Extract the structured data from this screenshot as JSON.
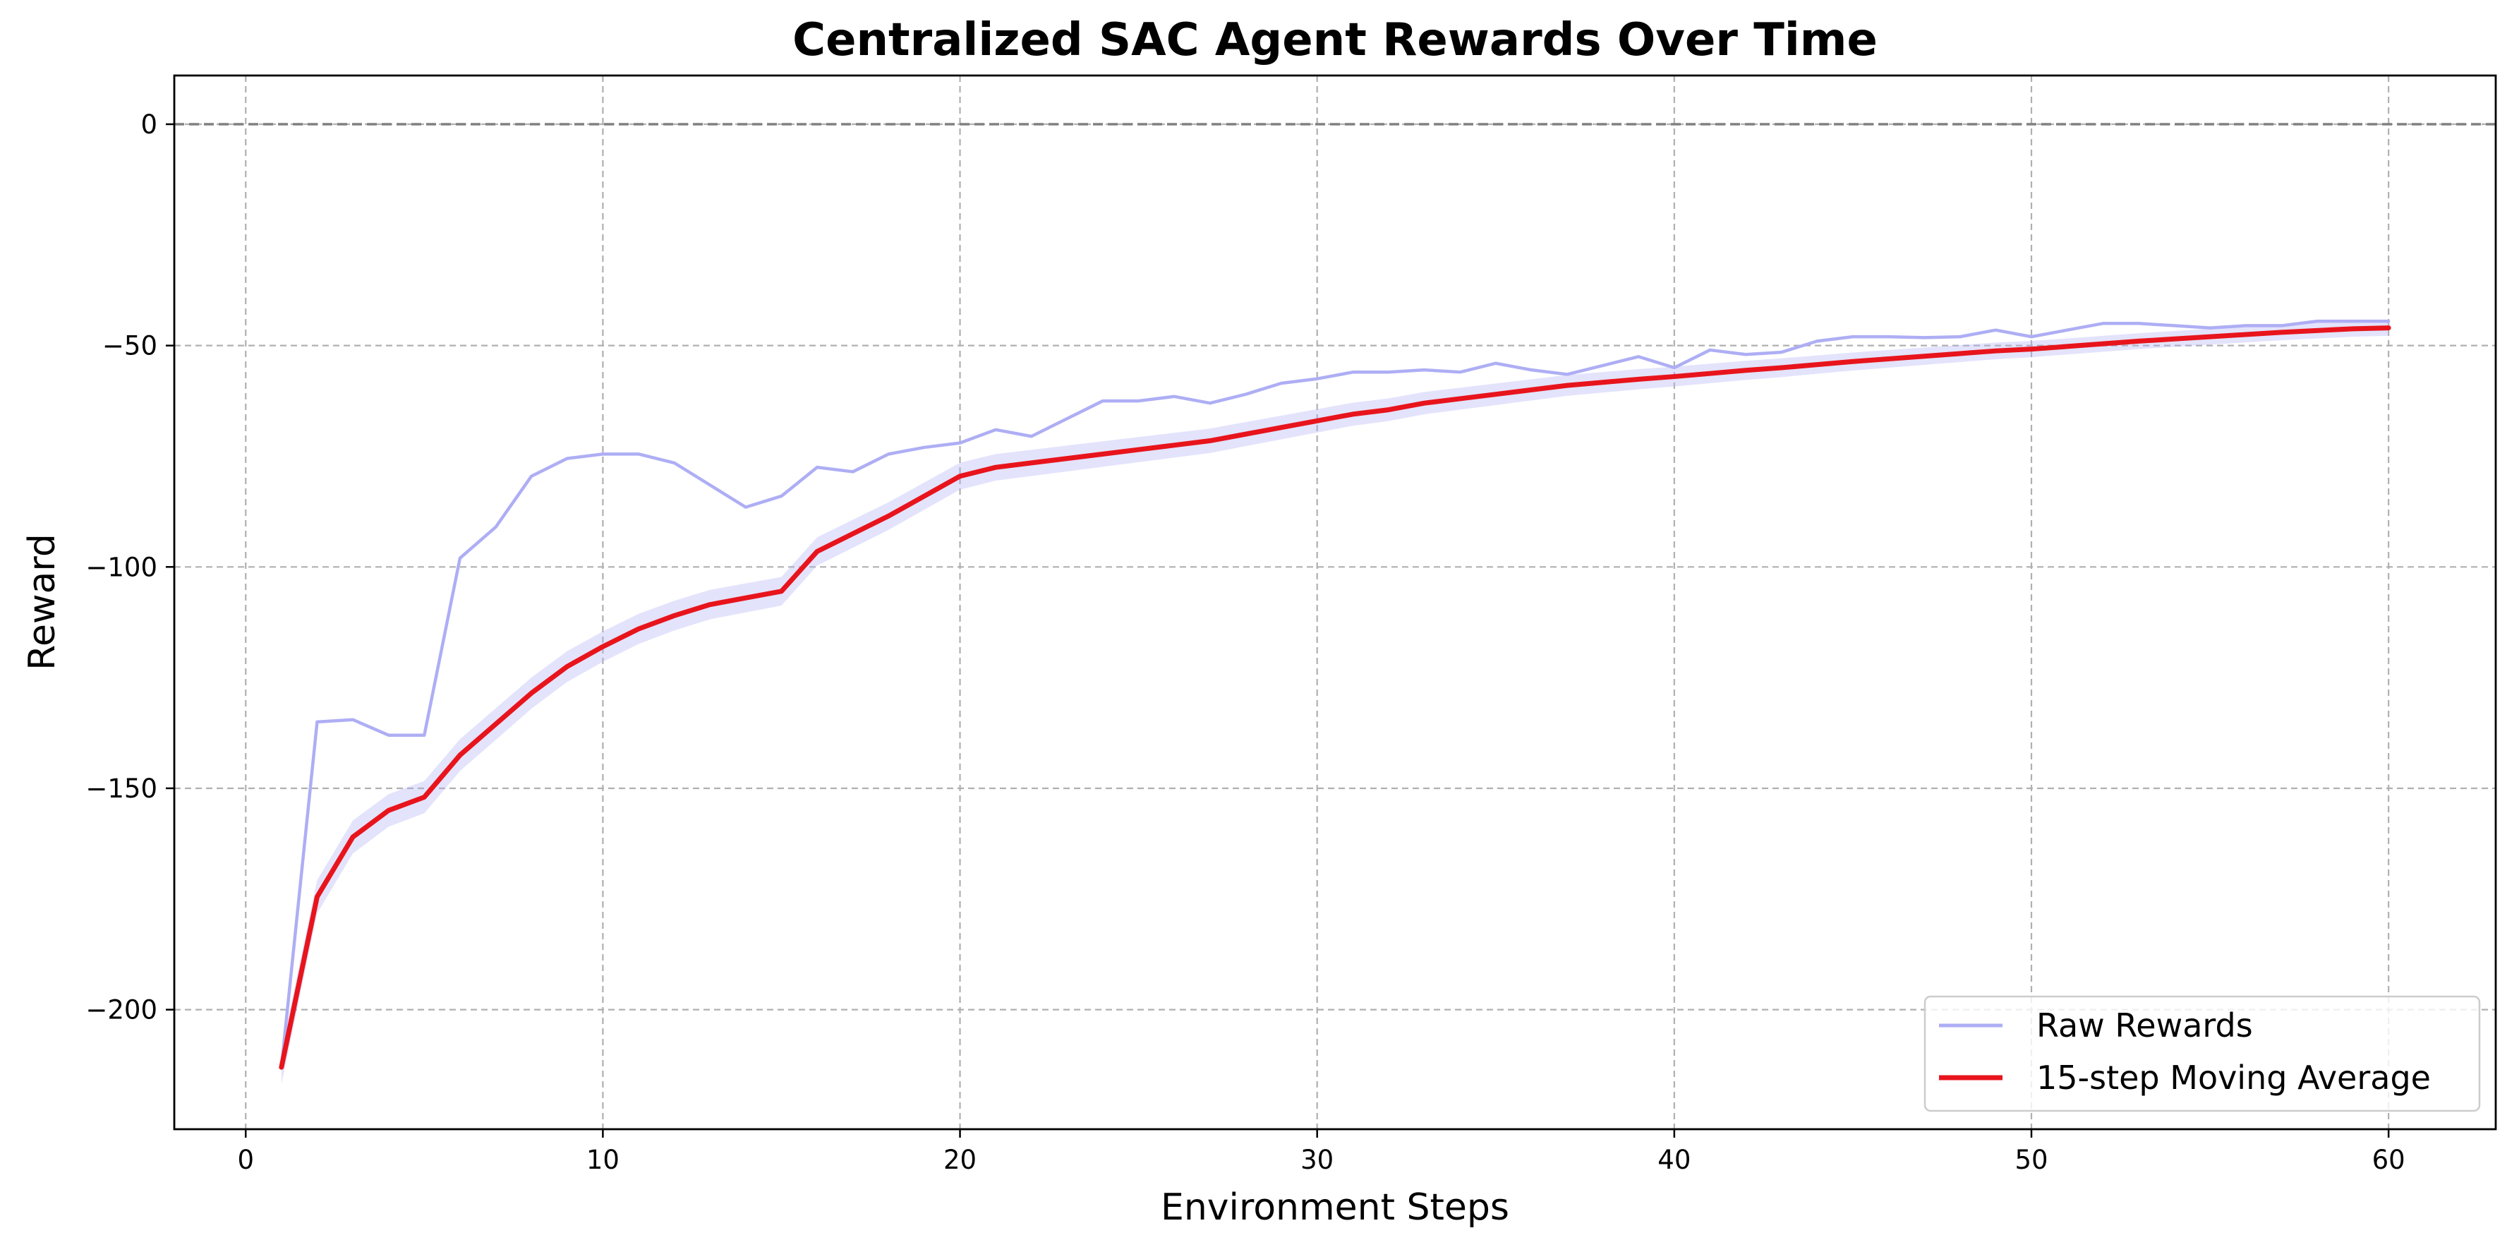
{
  "chart_data": {
    "type": "line",
    "title": "Centralized SAC Agent Rewards Over Time",
    "xlabel": "Environment Steps",
    "ylabel": "Reward",
    "xlim": [
      -2,
      63
    ],
    "ylim": [
      -227,
      11
    ],
    "xticks": [
      0,
      10,
      20,
      30,
      40,
      50,
      60
    ],
    "yticks": [
      0,
      -50,
      -100,
      -150,
      -200
    ],
    "ytick_labels": [
      "0",
      "−50",
      "−100",
      "−150",
      "−200"
    ],
    "grid": true,
    "reference_line": {
      "y": 0,
      "style": "dashed",
      "color": "#808080"
    },
    "legend_position": "lower-right",
    "x": [
      1,
      2,
      3,
      4,
      5,
      6,
      7,
      8,
      9,
      10,
      11,
      12,
      13,
      14,
      15,
      16,
      17,
      18,
      19,
      20,
      21,
      22,
      23,
      24,
      25,
      26,
      27,
      28,
      29,
      30,
      31,
      32,
      33,
      34,
      35,
      36,
      37,
      38,
      39,
      40,
      41,
      42,
      43,
      44,
      45,
      46,
      47,
      48,
      49,
      50,
      51,
      52,
      53,
      54,
      55,
      56,
      57,
      58,
      59,
      60
    ],
    "series": [
      {
        "name": "Raw Rewards",
        "color": "#aeaef5",
        "values": [
          -213,
          -135,
          -134.5,
          -138,
          -138,
          -98,
          -91,
          -79.5,
          -75.5,
          -74.5,
          -74.5,
          -76.5,
          -81.5,
          -86.5,
          -84,
          -77.5,
          -78.5,
          -74.5,
          -73,
          -72,
          -69,
          -70.5,
          -66.5,
          -62.5,
          -62.5,
          -61.5,
          -63,
          -61,
          -58.5,
          -57.5,
          -56,
          -56,
          -55.5,
          -56,
          -54,
          -55.5,
          -56.5,
          -54.5,
          -52.5,
          -55,
          -51,
          -52,
          -51.5,
          -49,
          -48,
          -48,
          -48.2,
          -48,
          -46.5,
          -48,
          -46.5,
          -45,
          -45,
          -45.5,
          -46,
          -45.5,
          -45.5,
          -44.5,
          -44.5,
          -44.5
        ]
      },
      {
        "name": "15-step Moving Average",
        "color": "#e8141c",
        "values": [
          -213,
          -174.5,
          -161,
          -155,
          -152,
          -142.5,
          -135.5,
          -128.5,
          -122.5,
          -118,
          -114,
          -111,
          -108.5,
          -107,
          -105.5,
          -96.5,
          -92.5,
          -88.5,
          -84,
          -79.5,
          -77.5,
          -76.5,
          -75.5,
          -74.5,
          -73.5,
          -72.5,
          -71.5,
          -70,
          -68.5,
          -67,
          -65.5,
          -64.5,
          -63,
          -62,
          -61,
          -60,
          -59,
          -58.3,
          -57.6,
          -57,
          -56.3,
          -55.6,
          -55,
          -54.3,
          -53.6,
          -53,
          -52.4,
          -51.8,
          -51.2,
          -50.8,
          -50.2,
          -49.6,
          -49,
          -48.5,
          -48,
          -47.5,
          -47,
          -46.6,
          -46.2,
          -46
        ]
      }
    ]
  }
}
